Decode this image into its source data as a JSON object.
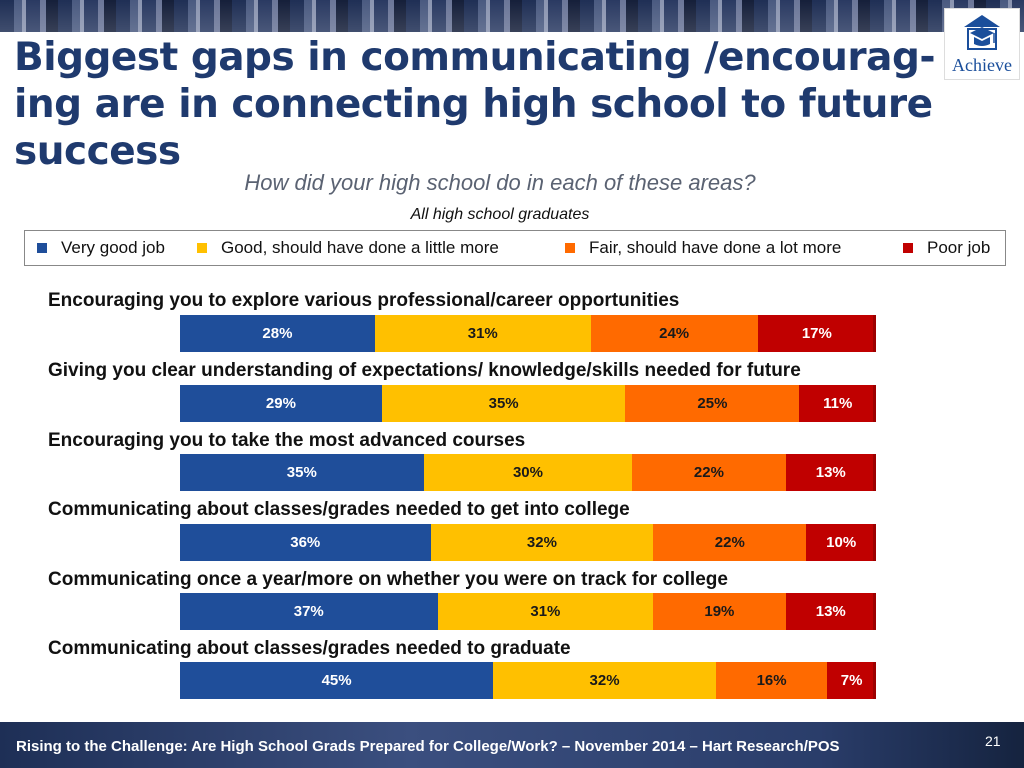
{
  "header": {
    "title": "Biggest gaps in communicating /encourag-ing are in connecting high school to future success",
    "logo_text": "Achieve"
  },
  "chart_data": {
    "type": "bar",
    "stacked": true,
    "orientation": "horizontal",
    "title": "How did your high school do in each of these areas?",
    "subtitle": "All high school graduates",
    "legend_position": "top",
    "categories": [
      "Encouraging you to explore various professional/career opportunities",
      "Giving you clear understanding of expectations/ knowledge/skills needed for future",
      "Encouraging you to take the most advanced courses",
      "Communicating about classes/grades needed to get into college",
      "Communicating once a year/more on whether you were on track for college",
      "Communicating about classes/grades needed to graduate"
    ],
    "series": [
      {
        "name": "Very good job",
        "color": "#1f4e9a",
        "values": [
          28,
          29,
          35,
          36,
          37,
          45
        ],
        "labels": [
          "28%",
          "29%",
          "35%",
          "36%",
          "37%",
          "45%"
        ]
      },
      {
        "name": "Good, should have done a little more",
        "color": "#ffc000",
        "values": [
          31,
          35,
          30,
          32,
          31,
          32
        ],
        "labels": [
          "31%",
          "35%",
          "30%",
          "32%",
          "31%",
          "32%"
        ]
      },
      {
        "name": "Fair, should have done a lot more",
        "color": "#ff6a00",
        "values": [
          24,
          25,
          22,
          22,
          19,
          16
        ],
        "labels": [
          "24%",
          "25%",
          "22%",
          "22%",
          "19%",
          "16%"
        ]
      },
      {
        "name": "Poor job",
        "color": "#c00000",
        "values": [
          17,
          11,
          13,
          10,
          13,
          7
        ],
        "labels": [
          "17%",
          "11%",
          "13%",
          "10%",
          "13%",
          "7%"
        ]
      }
    ]
  },
  "footer": {
    "text": "Rising to the Challenge:  Are High School Grads Prepared for College/Work? – November 2014 – Hart Research/POS",
    "page": "21"
  }
}
